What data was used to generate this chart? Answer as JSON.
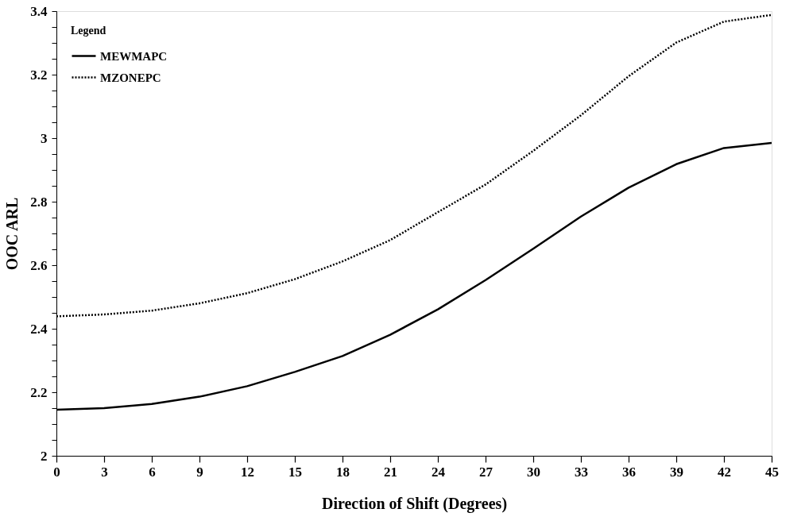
{
  "chart_data": {
    "type": "line",
    "xlabel": "Direction of Shift (Degrees)",
    "ylabel": "OOC ARL",
    "legend_title": "Legend",
    "legend": "top left",
    "grid": false,
    "marker": "none",
    "x": [
      0,
      3,
      6,
      9,
      12,
      15,
      18,
      21,
      24,
      27,
      30,
      33,
      36,
      39,
      42,
      45
    ],
    "series": [
      {
        "name": "MEWMAPC",
        "color": "#000000",
        "line_style": "solid",
        "values": [
          2.145,
          2.15,
          2.163,
          2.186,
          2.219,
          2.264,
          2.314,
          2.381,
          2.461,
          2.553,
          2.652,
          2.753,
          2.844,
          2.918,
          2.969,
          2.985
        ]
      },
      {
        "name": "MZONEPC",
        "color": "#000000",
        "line_style": "dotted",
        "values": [
          2.439,
          2.445,
          2.457,
          2.48,
          2.512,
          2.556,
          2.612,
          2.679,
          2.767,
          2.854,
          2.96,
          3.072,
          3.195,
          3.301,
          3.367,
          3.388
        ]
      }
    ],
    "xlim": [
      0,
      45
    ],
    "xticks": [
      0,
      3,
      6,
      9,
      12,
      15,
      18,
      21,
      24,
      27,
      30,
      33,
      36,
      39,
      42,
      45
    ],
    "ylim": [
      2,
      3.4
    ],
    "yticks": [
      2,
      {
        "value": 2.05,
        "label": null
      },
      {
        "value": 2.1,
        "label": null
      },
      {
        "value": 2.15,
        "label": null
      },
      2.2,
      {
        "value": 2.25,
        "label": null
      },
      {
        "value": 2.3,
        "label": null
      },
      {
        "value": 2.35,
        "label": null
      },
      2.4,
      {
        "value": 2.45,
        "label": null
      },
      {
        "value": 2.5,
        "label": null
      },
      {
        "value": 2.55,
        "label": null
      },
      2.6,
      {
        "value": 2.65,
        "label": null
      },
      {
        "value": 2.7,
        "label": null
      },
      {
        "value": 2.75,
        "label": null
      },
      2.8,
      {
        "value": 2.85,
        "label": null
      },
      {
        "value": 2.9,
        "label": null
      },
      {
        "value": 2.95,
        "label": null
      },
      3,
      {
        "value": 3.05,
        "label": null
      },
      {
        "value": 3.1,
        "label": null
      },
      {
        "value": 3.15,
        "label": null
      },
      3.2,
      {
        "value": 3.25,
        "label": null
      },
      {
        "value": 3.3,
        "label": null
      },
      {
        "value": 3.35,
        "label": null
      },
      3.4
    ]
  }
}
